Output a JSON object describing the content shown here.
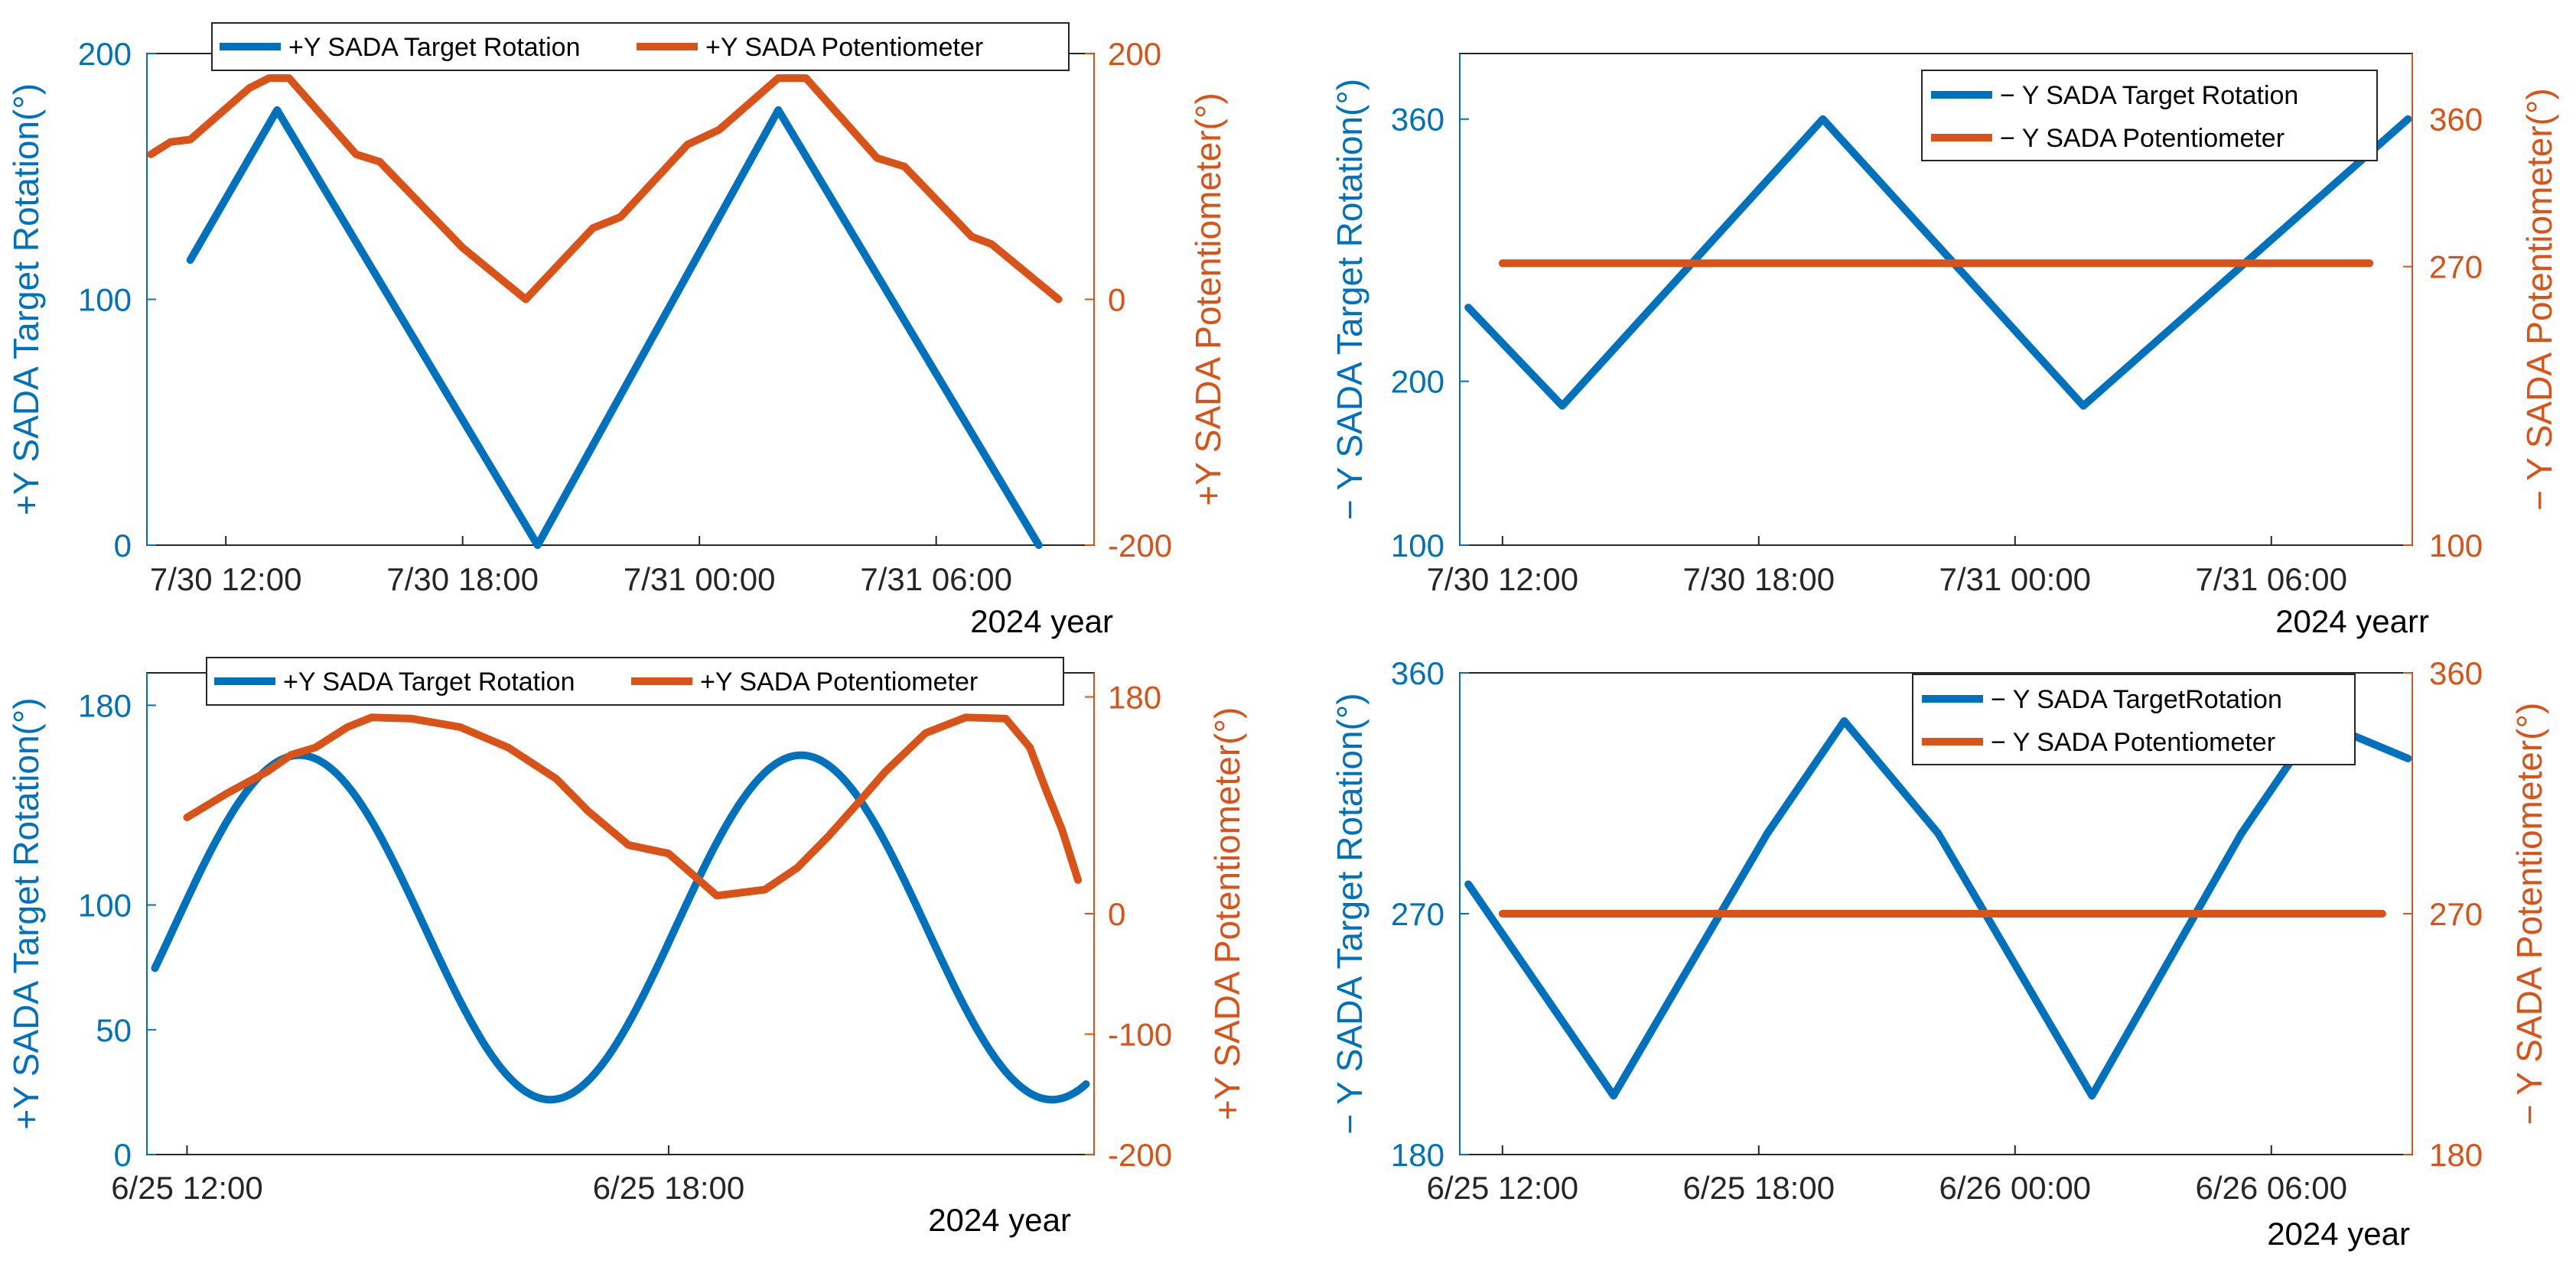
{
  "colors": {
    "target": "#0072BD",
    "potentiometer": "#D95319",
    "axis": "#262626"
  },
  "chart_data": [
    {
      "id": "top-left",
      "type": "line",
      "x_tick_labels": [
        "7/30 12:00",
        "7/30 18:00",
        "7/31 00:00",
        "7/31 06:00"
      ],
      "x_ticks": [
        12,
        18,
        24,
        30
      ],
      "x_range": [
        10,
        34
      ],
      "year_label": "2024 year",
      "left_axis": {
        "label": "+Y SADA Target Rotation(°)",
        "range": [
          0,
          200
        ],
        "ticks": [
          0,
          100,
          200
        ],
        "tick_labels": [
          "0",
          "100",
          "200"
        ]
      },
      "right_axis": {
        "label": "+Y SADA Potentiometer(°)",
        "range": [
          -200,
          200
        ],
        "ticks": [
          -200,
          0,
          200
        ],
        "tick_labels": [
          "-200",
          "0",
          "200"
        ]
      },
      "legend": {
        "location": "top",
        "entries": [
          "+Y SADA Target Rotation",
          "+Y SADA Potentiometer"
        ]
      },
      "series": [
        {
          "name": "+Y SADA Target Rotation",
          "axis": "left",
          "x": [
            11.1,
            13.3,
            19.9,
            26.0,
            32.6
          ],
          "y": [
            116,
            177,
            0,
            177,
            0
          ]
        },
        {
          "name": "+Y SADA Potentiometer",
          "axis": "right",
          "x": [
            10.1,
            10.6,
            11.1,
            12.6,
            13.1,
            13.6,
            15.3,
            15.9,
            17.4,
            18.0,
            19.6,
            21.3,
            22.0,
            23.7,
            24.5,
            26.0,
            26.7,
            28.5,
            29.2,
            30.9,
            31.4,
            33.1
          ],
          "y": [
            118,
            128,
            130,
            172,
            180,
            180,
            118,
            112,
            62,
            42,
            0,
            58,
            67,
            126,
            138,
            180,
            180,
            115,
            108,
            51,
            45,
            0
          ]
        }
      ]
    },
    {
      "id": "top-right",
      "type": "line",
      "x_tick_labels": [
        "7/30 12:00",
        "7/30 18:00",
        "7/31 00:00",
        "7/31 06:00"
      ],
      "x_ticks": [
        12,
        18,
        24,
        30
      ],
      "x_range": [
        11,
        33.3
      ],
      "year_label": "2024 yearr",
      "left_axis": {
        "label": "− Y SADA Target Rotation(°)",
        "range": [
          100,
          400
        ],
        "ticks": [
          100,
          200,
          360
        ],
        "tick_labels": [
          "100",
          "200",
          "360"
        ]
      },
      "right_axis": {
        "label": "− Y SADA Potentiometer(°)",
        "range": [
          100,
          400
        ],
        "ticks": [
          100,
          270,
          360
        ],
        "tick_labels": [
          "100",
          "270",
          "360"
        ]
      },
      "legend": {
        "location": "top-right",
        "entries": [
          "− Y SADA Target Rotation",
          "− Y SADA Potentiometer"
        ]
      },
      "series": [
        {
          "name": "− Y SADA Target Rotation",
          "axis": "left",
          "x": [
            11.2,
            13.4,
            19.5,
            25.6,
            33.2
          ],
          "y": [
            245,
            185,
            360,
            185,
            360
          ]
        },
        {
          "name": "− Y SADA Potentiometer",
          "axis": "right",
          "x": [
            12.0,
            32.3
          ],
          "y": [
            272,
            272
          ]
        }
      ]
    },
    {
      "id": "bottom-left",
      "type": "line",
      "x_tick_labels": [
        "6/25 12:00",
        "6/25 18:00"
      ],
      "x_ticks": [
        12,
        18
      ],
      "x_range": [
        11.5,
        23.3
      ],
      "year_label": "2024 year",
      "left_axis": {
        "label": "+Y SADA Target Rotation(°)",
        "range": [
          0,
          193
        ],
        "ticks": [
          0,
          50,
          100,
          180
        ],
        "tick_labels": [
          "0",
          "50",
          "100",
          "180"
        ]
      },
      "right_axis": {
        "label": "+Y SADA Potentiometer(°)",
        "range": [
          -200,
          200
        ],
        "ticks": [
          -200,
          -100,
          0,
          180
        ],
        "tick_labels": [
          "-200",
          "-100",
          "0",
          "180"
        ]
      },
      "legend": {
        "location": "top",
        "entries": [
          "+Y SADA Target Rotation",
          "+Y SADA Potentiometer"
        ]
      },
      "series": [
        {
          "name": "+Y SADA Target Rotation",
          "axis": "left",
          "minmax": [
            22,
            160
          ],
          "x_start": 11.6,
          "x_end": 23.2,
          "peak_x": 13.4,
          "period": 6.25
        },
        {
          "name": "+Y SADA Potentiometer",
          "axis": "right",
          "x": [
            12.0,
            12.5,
            13.0,
            13.3,
            13.6,
            14.0,
            14.3,
            14.8,
            15.4,
            16.0,
            16.6,
            17.0,
            17.5,
            18.0,
            18.6,
            19.2,
            19.6,
            20.0,
            20.4,
            20.7,
            21.2,
            21.7,
            22.2,
            22.5,
            22.7,
            22.9,
            23.1
          ],
          "y": [
            80,
            100,
            118,
            132,
            138,
            155,
            163,
            162,
            155,
            138,
            112,
            85,
            57,
            50,
            15,
            20,
            38,
            65,
            95,
            118,
            150,
            163,
            162,
            138,
            103,
            70,
            28
          ]
        }
      ]
    },
    {
      "id": "bottom-right",
      "type": "line",
      "x_tick_labels": [
        "6/25 12:00",
        "6/25 18:00",
        "6/26 00:00",
        "6/26 06:00"
      ],
      "x_ticks": [
        12,
        18,
        24,
        30
      ],
      "x_range": [
        11,
        33.3
      ],
      "year_label": "2024 year",
      "left_axis": {
        "label": "− Y SADA Target Rotation(°)",
        "range": [
          180,
          360
        ],
        "ticks": [
          180,
          270,
          360
        ],
        "tick_labels": [
          "180",
          "270",
          "360"
        ]
      },
      "right_axis": {
        "label": "− Y SADA Potentiometer(°)",
        "range": [
          180,
          360
        ],
        "ticks": [
          180,
          270,
          360
        ],
        "tick_labels": [
          "180",
          "270",
          "360"
        ]
      },
      "legend": {
        "location": "top-right",
        "entries": [
          "− Y SADA TargetRotation",
          "− Y SADA Potentiometer"
        ]
      },
      "series": [
        {
          "name": "− Y SADA TargetRotation",
          "axis": "left",
          "x": [
            11.2,
            14.6,
            18.2,
            20.0,
            22.2,
            25.8,
            29.3,
            31.1,
            33.2
          ],
          "y": [
            281,
            202,
            300,
            342,
            300,
            202,
            300,
            342,
            328
          ]
        },
        {
          "name": "− Y SADA Potentiometer",
          "axis": "right",
          "x": [
            12.0,
            32.6
          ],
          "y": [
            270,
            270
          ]
        }
      ]
    }
  ]
}
